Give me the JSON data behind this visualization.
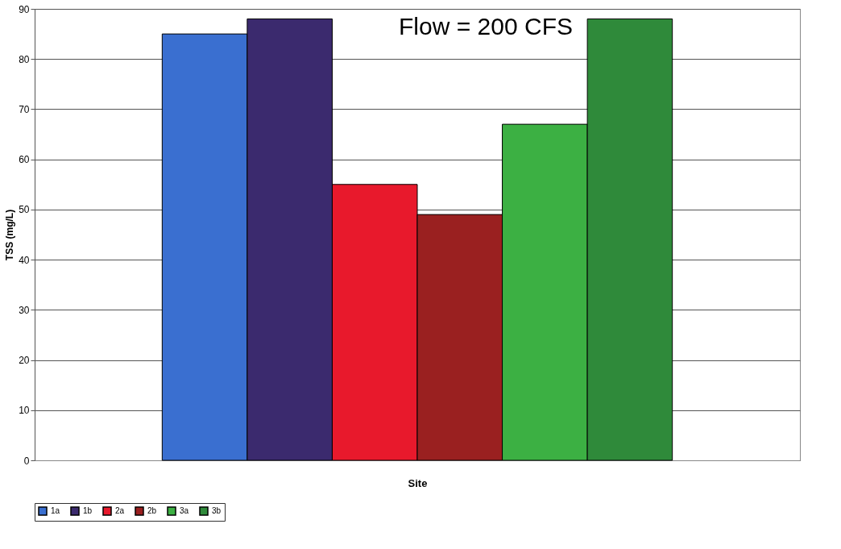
{
  "chart_data": {
    "type": "bar",
    "title": "Flow = 200 CFS",
    "xlabel": "Site",
    "ylabel": "TSS (mg/L)",
    "categories": [
      null
    ],
    "series": [
      {
        "name": "1a",
        "color": "#3a6fd0",
        "values": [
          85
        ]
      },
      {
        "name": "1b",
        "color": "#3b2a6e",
        "values": [
          88
        ]
      },
      {
        "name": "2a",
        "color": "#e8192c",
        "values": [
          55
        ]
      },
      {
        "name": "2b",
        "color": "#9a2020",
        "values": [
          49
        ]
      },
      {
        "name": "3a",
        "color": "#3cb043",
        "values": [
          67
        ]
      },
      {
        "name": "3b",
        "color": "#2f8a3a",
        "values": [
          88
        ]
      }
    ],
    "ylim": [
      0,
      90
    ],
    "yticks": [
      0,
      10,
      20,
      30,
      40,
      50,
      60,
      70,
      80,
      90
    ],
    "grid": "y",
    "legend": "bottom"
  }
}
